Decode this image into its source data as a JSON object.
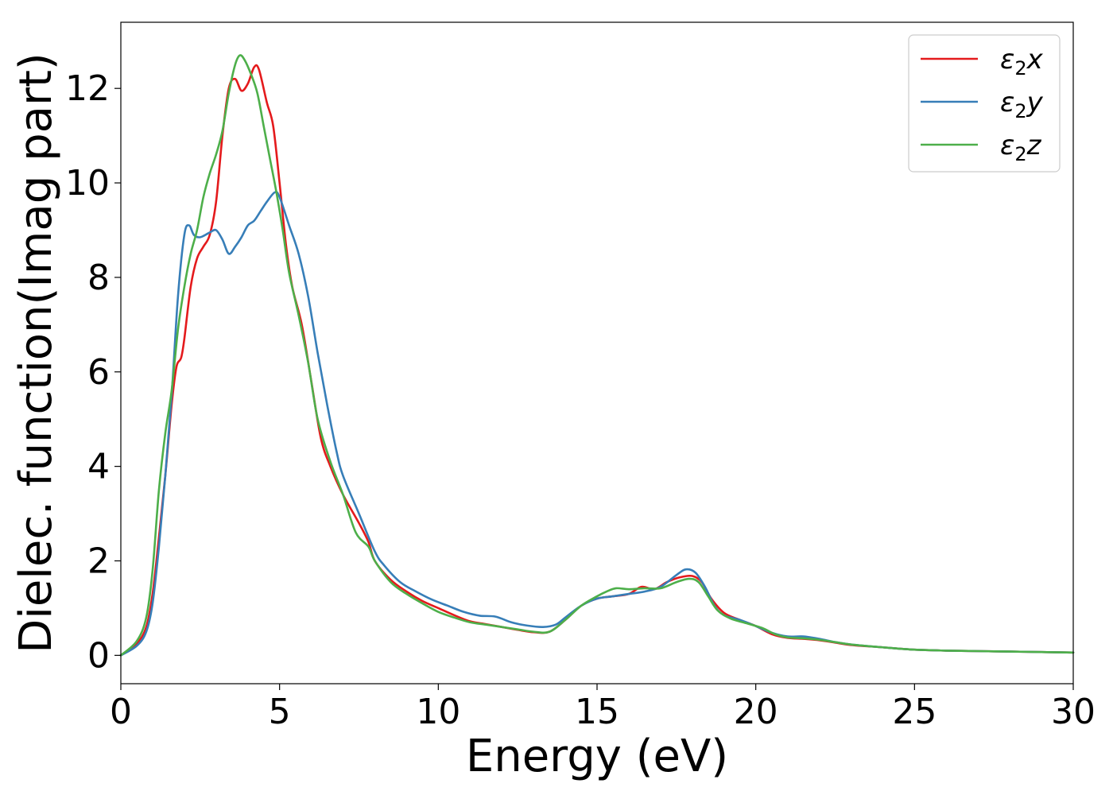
{
  "chart_data": {
    "type": "line",
    "title": "",
    "xlabel": "Energy (eV)",
    "ylabel": "Dielec. function(Imag part)",
    "xlim": [
      0,
      30
    ],
    "ylim": [
      -0.6,
      13.4
    ],
    "xticks": [
      0,
      5,
      10,
      15,
      20,
      25,
      30
    ],
    "yticks": [
      0,
      2,
      4,
      6,
      8,
      10,
      12
    ],
    "xtick_labels": [
      "0",
      "5",
      "10",
      "15",
      "20",
      "25",
      "30"
    ],
    "ytick_labels": [
      "0",
      "2",
      "4",
      "6",
      "8",
      "10",
      "12"
    ],
    "grid": false,
    "legend_position": "top-right",
    "series": [
      {
        "name": "ε2x",
        "legend_base": "ε",
        "legend_sub": "2",
        "legend_var": "x",
        "color": "#e41a1c",
        "points": [
          [
            0,
            0
          ],
          [
            0.5,
            0.25
          ],
          [
            0.8,
            0.6
          ],
          [
            1.0,
            1.3
          ],
          [
            1.2,
            2.5
          ],
          [
            1.4,
            3.8
          ],
          [
            1.6,
            5.3
          ],
          [
            1.75,
            6.1
          ],
          [
            1.9,
            6.3
          ],
          [
            2.0,
            6.7
          ],
          [
            2.2,
            7.8
          ],
          [
            2.4,
            8.4
          ],
          [
            2.6,
            8.65
          ],
          [
            2.8,
            8.9
          ],
          [
            3.0,
            9.6
          ],
          [
            3.2,
            11.0
          ],
          [
            3.4,
            12.0
          ],
          [
            3.6,
            12.2
          ],
          [
            3.8,
            11.95
          ],
          [
            4.0,
            12.1
          ],
          [
            4.2,
            12.45
          ],
          [
            4.35,
            12.4
          ],
          [
            4.6,
            11.7
          ],
          [
            4.8,
            11.2
          ],
          [
            5.0,
            10.0
          ],
          [
            5.2,
            8.7
          ],
          [
            5.4,
            7.8
          ],
          [
            5.7,
            7.0
          ],
          [
            6.0,
            5.8
          ],
          [
            6.3,
            4.6
          ],
          [
            6.6,
            4.0
          ],
          [
            7.0,
            3.4
          ],
          [
            7.5,
            2.8
          ],
          [
            7.8,
            2.4
          ],
          [
            8.0,
            2.0
          ],
          [
            8.5,
            1.6
          ],
          [
            9.0,
            1.35
          ],
          [
            9.5,
            1.15
          ],
          [
            10.0,
            1.0
          ],
          [
            10.5,
            0.85
          ],
          [
            11.0,
            0.72
          ],
          [
            11.5,
            0.66
          ],
          [
            12.0,
            0.6
          ],
          [
            12.5,
            0.54
          ],
          [
            13.0,
            0.49
          ],
          [
            13.5,
            0.5
          ],
          [
            14.0,
            0.75
          ],
          [
            14.5,
            1.05
          ],
          [
            15.0,
            1.2
          ],
          [
            15.5,
            1.25
          ],
          [
            16.0,
            1.3
          ],
          [
            16.4,
            1.45
          ],
          [
            16.8,
            1.4
          ],
          [
            17.2,
            1.55
          ],
          [
            17.6,
            1.65
          ],
          [
            18.0,
            1.68
          ],
          [
            18.3,
            1.55
          ],
          [
            18.6,
            1.2
          ],
          [
            19.0,
            0.9
          ],
          [
            19.5,
            0.75
          ],
          [
            20.0,
            0.62
          ],
          [
            20.5,
            0.45
          ],
          [
            21.0,
            0.37
          ],
          [
            21.5,
            0.35
          ],
          [
            22.0,
            0.32
          ],
          [
            22.5,
            0.27
          ],
          [
            23.0,
            0.22
          ],
          [
            24.0,
            0.17
          ],
          [
            25.0,
            0.12
          ],
          [
            26.0,
            0.1
          ],
          [
            27.0,
            0.09
          ],
          [
            28.0,
            0.08
          ],
          [
            29.0,
            0.07
          ],
          [
            30.0,
            0.06
          ]
        ]
      },
      {
        "name": "ε2y",
        "legend_base": "ε",
        "legend_sub": "2",
        "legend_var": "y",
        "color": "#377eb8",
        "points": [
          [
            0,
            0
          ],
          [
            0.5,
            0.2
          ],
          [
            0.8,
            0.5
          ],
          [
            1.0,
            1.1
          ],
          [
            1.2,
            2.3
          ],
          [
            1.4,
            3.8
          ],
          [
            1.6,
            5.5
          ],
          [
            1.8,
            7.6
          ],
          [
            2.0,
            8.9
          ],
          [
            2.15,
            9.1
          ],
          [
            2.3,
            8.9
          ],
          [
            2.5,
            8.85
          ],
          [
            2.8,
            8.95
          ],
          [
            3.0,
            9.0
          ],
          [
            3.2,
            8.8
          ],
          [
            3.4,
            8.5
          ],
          [
            3.6,
            8.65
          ],
          [
            3.8,
            8.85
          ],
          [
            4.0,
            9.1
          ],
          [
            4.2,
            9.2
          ],
          [
            4.4,
            9.4
          ],
          [
            4.6,
            9.6
          ],
          [
            4.85,
            9.8
          ],
          [
            5.0,
            9.7
          ],
          [
            5.3,
            9.1
          ],
          [
            5.6,
            8.5
          ],
          [
            5.9,
            7.6
          ],
          [
            6.2,
            6.4
          ],
          [
            6.5,
            5.3
          ],
          [
            6.8,
            4.3
          ],
          [
            7.0,
            3.8
          ],
          [
            7.5,
            3.0
          ],
          [
            8.0,
            2.2
          ],
          [
            8.3,
            1.9
          ],
          [
            8.8,
            1.55
          ],
          [
            9.3,
            1.35
          ],
          [
            9.8,
            1.18
          ],
          [
            10.3,
            1.05
          ],
          [
            10.8,
            0.92
          ],
          [
            11.3,
            0.84
          ],
          [
            11.8,
            0.82
          ],
          [
            12.3,
            0.7
          ],
          [
            12.8,
            0.63
          ],
          [
            13.3,
            0.6
          ],
          [
            13.7,
            0.65
          ],
          [
            14.0,
            0.8
          ],
          [
            14.5,
            1.05
          ],
          [
            15.0,
            1.2
          ],
          [
            15.5,
            1.25
          ],
          [
            16.0,
            1.3
          ],
          [
            16.5,
            1.35
          ],
          [
            17.0,
            1.45
          ],
          [
            17.5,
            1.7
          ],
          [
            17.8,
            1.82
          ],
          [
            18.1,
            1.75
          ],
          [
            18.4,
            1.45
          ],
          [
            18.7,
            1.05
          ],
          [
            19.0,
            0.85
          ],
          [
            19.5,
            0.75
          ],
          [
            20.0,
            0.62
          ],
          [
            20.5,
            0.48
          ],
          [
            21.0,
            0.4
          ],
          [
            21.5,
            0.4
          ],
          [
            22.0,
            0.35
          ],
          [
            22.5,
            0.28
          ],
          [
            23.0,
            0.23
          ],
          [
            24.0,
            0.17
          ],
          [
            25.0,
            0.12
          ],
          [
            26.0,
            0.1
          ],
          [
            27.0,
            0.09
          ],
          [
            28.0,
            0.08
          ],
          [
            29.0,
            0.07
          ],
          [
            30.0,
            0.06
          ]
        ]
      },
      {
        "name": "ε2z",
        "legend_base": "ε",
        "legend_sub": "2",
        "legend_var": "z",
        "color": "#4daf4a",
        "points": [
          [
            0,
            0
          ],
          [
            0.5,
            0.3
          ],
          [
            0.8,
            0.8
          ],
          [
            1.0,
            1.8
          ],
          [
            1.2,
            3.5
          ],
          [
            1.4,
            4.7
          ],
          [
            1.6,
            5.6
          ],
          [
            1.8,
            6.9
          ],
          [
            2.0,
            7.8
          ],
          [
            2.2,
            8.5
          ],
          [
            2.4,
            9.0
          ],
          [
            2.6,
            9.7
          ],
          [
            2.8,
            10.2
          ],
          [
            3.0,
            10.6
          ],
          [
            3.2,
            11.1
          ],
          [
            3.4,
            11.9
          ],
          [
            3.6,
            12.5
          ],
          [
            3.75,
            12.7
          ],
          [
            3.9,
            12.6
          ],
          [
            4.1,
            12.3
          ],
          [
            4.3,
            11.9
          ],
          [
            4.5,
            11.2
          ],
          [
            4.7,
            10.5
          ],
          [
            4.9,
            9.8
          ],
          [
            5.1,
            9.0
          ],
          [
            5.3,
            8.1
          ],
          [
            5.6,
            7.2
          ],
          [
            5.9,
            6.2
          ],
          [
            6.2,
            5.0
          ],
          [
            6.6,
            4.1
          ],
          [
            7.0,
            3.4
          ],
          [
            7.4,
            2.6
          ],
          [
            7.8,
            2.3
          ],
          [
            8.0,
            2.0
          ],
          [
            8.5,
            1.55
          ],
          [
            9.0,
            1.3
          ],
          [
            9.5,
            1.1
          ],
          [
            10.0,
            0.92
          ],
          [
            10.5,
            0.8
          ],
          [
            11.0,
            0.7
          ],
          [
            11.5,
            0.65
          ],
          [
            12.0,
            0.6
          ],
          [
            12.5,
            0.55
          ],
          [
            13.0,
            0.5
          ],
          [
            13.5,
            0.5
          ],
          [
            14.0,
            0.75
          ],
          [
            14.5,
            1.05
          ],
          [
            15.0,
            1.25
          ],
          [
            15.3,
            1.35
          ],
          [
            15.6,
            1.42
          ],
          [
            16.0,
            1.4
          ],
          [
            16.5,
            1.42
          ],
          [
            17.0,
            1.42
          ],
          [
            17.5,
            1.55
          ],
          [
            17.9,
            1.62
          ],
          [
            18.2,
            1.55
          ],
          [
            18.5,
            1.25
          ],
          [
            18.8,
            0.95
          ],
          [
            19.2,
            0.78
          ],
          [
            19.7,
            0.68
          ],
          [
            20.2,
            0.58
          ],
          [
            20.6,
            0.45
          ],
          [
            21.0,
            0.38
          ],
          [
            21.5,
            0.36
          ],
          [
            22.0,
            0.33
          ],
          [
            22.5,
            0.28
          ],
          [
            23.0,
            0.23
          ],
          [
            24.0,
            0.17
          ],
          [
            25.0,
            0.12
          ],
          [
            26.0,
            0.1
          ],
          [
            27.0,
            0.09
          ],
          [
            28.0,
            0.08
          ],
          [
            29.0,
            0.07
          ],
          [
            30.0,
            0.06
          ]
        ]
      }
    ]
  }
}
